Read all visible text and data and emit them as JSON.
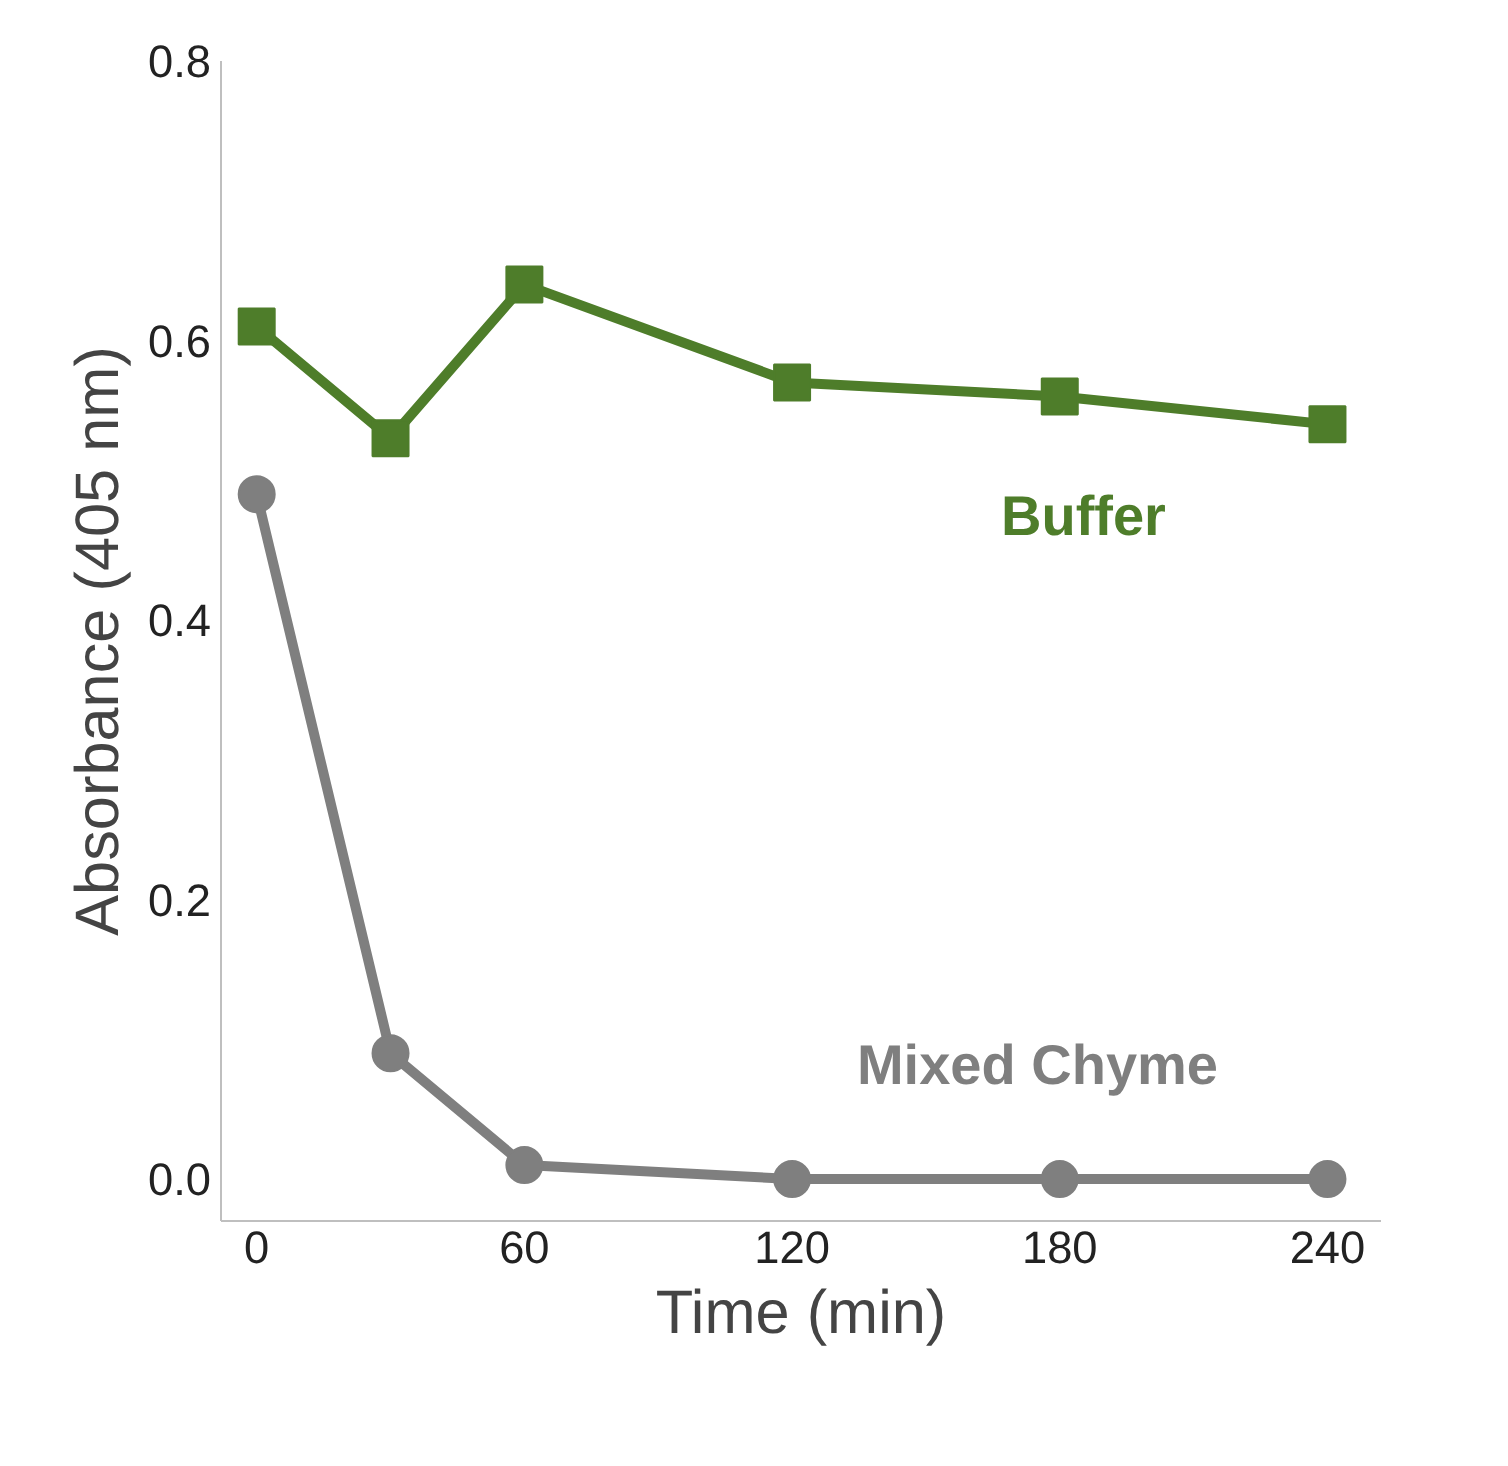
{
  "chart_data": {
    "type": "line",
    "xlabel": "Time (min)",
    "ylabel": "Absorbance (405 nm)",
    "x": [
      0,
      30,
      60,
      120,
      180,
      240
    ],
    "series": [
      {
        "name": "Buffer",
        "color": "#4e7d2a",
        "marker": "square",
        "values": [
          0.61,
          0.53,
          0.64,
          0.57,
          0.56,
          0.54
        ]
      },
      {
        "name": "Mixed Chyme",
        "color": "#7f7f7f",
        "marker": "circle",
        "values": [
          0.49,
          0.09,
          0.01,
          0,
          0,
          0
        ]
      }
    ],
    "xlim": [
      -8,
      252
    ],
    "ylim": [
      -0.03,
      0.8
    ],
    "xticks": [
      0,
      60,
      120,
      180,
      240
    ],
    "yticks": [
      {
        "value": 0,
        "label": "0.0"
      },
      {
        "value": 0.2,
        "label": "0.2"
      },
      {
        "value": 0.4,
        "label": "0.4"
      },
      {
        "value": 0.6,
        "label": "0.6"
      },
      {
        "value": 0.8,
        "label": "0.8"
      }
    ],
    "grid": false
  }
}
